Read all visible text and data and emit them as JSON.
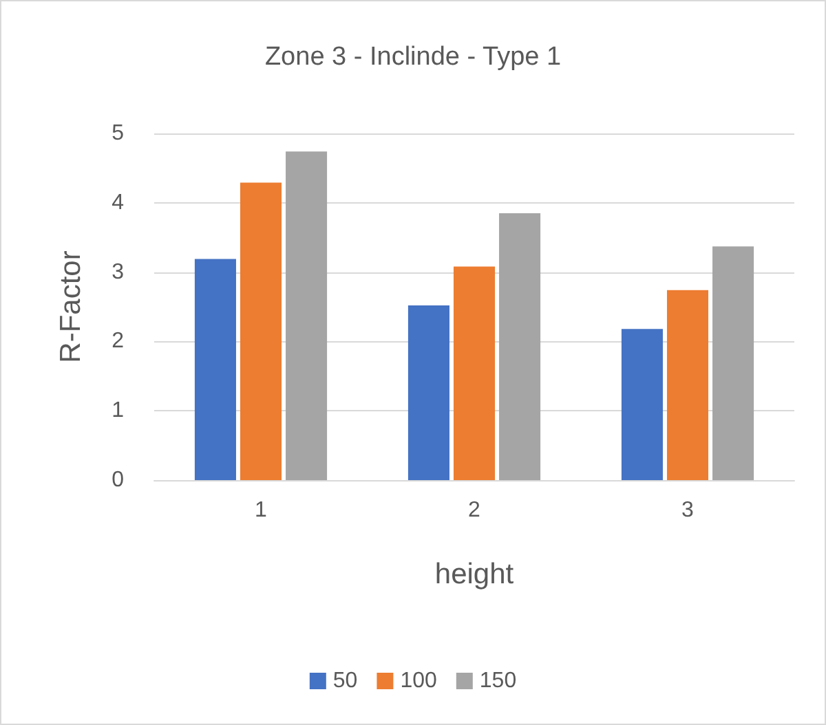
{
  "chart_data": {
    "type": "bar",
    "title": "Zone 3 - Inclinde - Type 1",
    "xlabel": "height",
    "ylabel": "R-Factor",
    "categories": [
      "1",
      "2",
      "3"
    ],
    "series": [
      {
        "name": "50",
        "color": "#4472c4",
        "values": [
          3.19,
          2.52,
          2.18
        ]
      },
      {
        "name": "100",
        "color": "#ed7d31",
        "values": [
          4.29,
          3.08,
          2.74
        ]
      },
      {
        "name": "150",
        "color": "#a5a5a5",
        "values": [
          4.74,
          3.85,
          3.37
        ]
      }
    ],
    "ylim": [
      0,
      5
    ],
    "yticks": [
      0,
      1,
      2,
      3,
      4,
      5
    ],
    "grid": "y",
    "legend": "bottom"
  }
}
